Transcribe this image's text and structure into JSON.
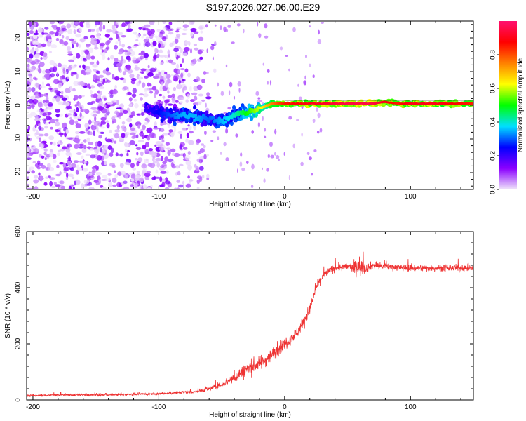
{
  "page_title": "S197.2026.027.06.00.E29",
  "colorbar": {
    "label": "Normalized spectral amplitude",
    "ticks": [
      "0.0",
      "0.2",
      "0.4",
      "0.6",
      "0.8"
    ],
    "tick_values": [
      0.0,
      0.2,
      0.4,
      0.6,
      0.8
    ],
    "range": [
      0,
      1
    ],
    "colors": [
      "#f0e6fa",
      "#8b00ff",
      "#0000ff",
      "#00e0ff",
      "#00ff00",
      "#ffff00",
      "#ff8000",
      "#ff0000",
      "#ff1070"
    ]
  },
  "chart_data": [
    {
      "type": "heatmap",
      "title": "S197.2026.027.06.00.E29",
      "xlabel": "Height of straight line (km)",
      "ylabel": "Frequency (Hz)",
      "xlim": [
        -205,
        150
      ],
      "ylim": [
        -25,
        25
      ],
      "x_ticks": [
        -200,
        -100,
        0,
        100
      ],
      "x_tick_labels": [
        "-200",
        "-100",
        "0",
        "100"
      ],
      "y_ticks": [
        -20,
        -10,
        0,
        10,
        20
      ],
      "y_tick_labels": [
        "-20",
        "-10",
        "0",
        "10",
        "20"
      ],
      "ridge": {
        "description": "ridge of high spectral amplitude",
        "x": [
          -110,
          -100,
          -90,
          -80,
          -70,
          -60,
          -50,
          -40,
          -30,
          -20,
          -10,
          0,
          20,
          50,
          70,
          80,
          90,
          100,
          120,
          150
        ],
        "y": [
          -1,
          -2,
          -3,
          -3,
          -3.5,
          -4,
          -5,
          -3,
          -2,
          -1,
          0.5,
          0.5,
          0.5,
          0.5,
          0.5,
          1,
          0.5,
          0.5,
          0.5,
          0.5
        ],
        "amplitude": [
          0.2,
          0.25,
          0.3,
          0.35,
          0.35,
          0.3,
          0.35,
          0.4,
          0.5,
          0.6,
          0.75,
          0.85,
          0.9,
          0.95,
          0.95,
          0.9,
          0.85,
          0.9,
          0.9,
          0.85
        ]
      },
      "noise_region": {
        "x_range": [
          -205,
          -60
        ],
        "amplitude": [
          0.0,
          0.15
        ]
      },
      "reference_line": {
        "x_range": [
          0,
          150
        ],
        "y": 1.5
      }
    },
    {
      "type": "line",
      "xlabel": "Height of straight line (km)",
      "ylabel": "SNR (10 * v/v)",
      "xlim": [
        -205,
        150
      ],
      "ylim": [
        0,
        600
      ],
      "x_ticks": [
        -200,
        -100,
        0,
        100
      ],
      "x_tick_labels": [
        "-200",
        "-100",
        "0",
        "100"
      ],
      "y_ticks": [
        0,
        200,
        400,
        600
      ],
      "y_tick_labels": [
        "0",
        "200",
        "400",
        "600"
      ],
      "series": [
        {
          "name": "SNR",
          "color": "#ee3333",
          "x": [
            -205,
            -180,
            -150,
            -120,
            -100,
            -90,
            -80,
            -70,
            -60,
            -50,
            -40,
            -30,
            -20,
            -10,
            0,
            10,
            20,
            25,
            30,
            35,
            40,
            50,
            55,
            60,
            65,
            70,
            80,
            100,
            120,
            150
          ],
          "values": [
            15,
            18,
            18,
            20,
            22,
            24,
            28,
            30,
            40,
            55,
            80,
            110,
            130,
            160,
            200,
            240,
            320,
            400,
            440,
            460,
            470,
            475,
            470,
            480,
            470,
            480,
            475,
            470,
            470,
            470
          ],
          "noise": [
            8,
            8,
            8,
            8,
            8,
            9,
            10,
            12,
            15,
            20,
            35,
            55,
            45,
            45,
            40,
            35,
            35,
            30,
            25,
            25,
            25,
            25,
            40,
            70,
            30,
            25,
            22,
            22,
            22,
            22
          ]
        }
      ]
    }
  ]
}
